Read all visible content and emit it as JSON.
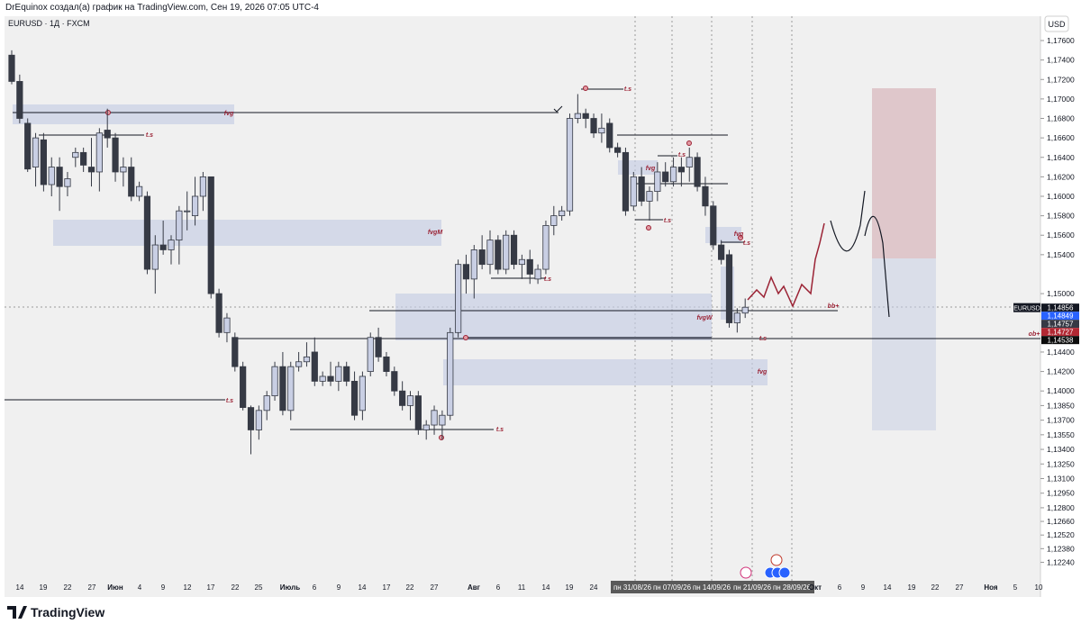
{
  "chart_data": {
    "type": "candlestick",
    "title": "DrEquinox создал(а) график на TradingView.com, Сен 19, 2026 07:05 UTC-4",
    "subtitle": "EURUSD · 1Д · FXCM",
    "currency": "USD",
    "symbol": "EURUSD",
    "brand": "TradingView",
    "up_color": "#c9cfe4",
    "down_color": "#363a45",
    "grid": false,
    "ylim": [
      1.1205,
      1.1785
    ],
    "yticks": [
      {
        "value": 1.176,
        "label": "1,17600"
      },
      {
        "value": 1.174,
        "label": "1,17400"
      },
      {
        "value": 1.172,
        "label": "1,17200"
      },
      {
        "value": 1.17,
        "label": "1,17000"
      },
      {
        "value": 1.168,
        "label": "1,16800"
      },
      {
        "value": 1.166,
        "label": "1,16600"
      },
      {
        "value": 1.164,
        "label": "1,16400"
      },
      {
        "value": 1.162,
        "label": "1,16200"
      },
      {
        "value": 1.16,
        "label": "1,16000"
      },
      {
        "value": 1.158,
        "label": "1,15800"
      },
      {
        "value": 1.156,
        "label": "1,15600"
      },
      {
        "value": 1.154,
        "label": "1,15400"
      },
      {
        "value": 1.15,
        "label": "1,15000"
      },
      {
        "value": 1.144,
        "label": "1,14400"
      },
      {
        "value": 1.142,
        "label": "1,14200"
      },
      {
        "value": 1.14,
        "label": "1,14000"
      },
      {
        "value": 1.1385,
        "label": "1,13850"
      },
      {
        "value": 1.137,
        "label": "1,13700"
      },
      {
        "value": 1.1355,
        "label": "1,13550"
      },
      {
        "value": 1.134,
        "label": "1,13400"
      },
      {
        "value": 1.1325,
        "label": "1,13250"
      },
      {
        "value": 1.131,
        "label": "1,13100"
      },
      {
        "value": 1.1295,
        "label": "1,12950"
      },
      {
        "value": 1.128,
        "label": "1,12800"
      },
      {
        "value": 1.1266,
        "label": "1,12660"
      },
      {
        "value": 1.1252,
        "label": "1,12520"
      },
      {
        "value": 1.1238,
        "label": "1,12380"
      },
      {
        "value": 1.1224,
        "label": "1,12240"
      }
    ],
    "price_tags": [
      {
        "value": 1.14856,
        "label": "1,14856"
      },
      {
        "value": 1.14849,
        "label": "1,14849"
      },
      {
        "value": 1.14757,
        "label": "1,14757"
      },
      {
        "value": 1.14727,
        "label": "1,14727"
      },
      {
        "value": 1.14538,
        "label": "1,14538"
      }
    ],
    "x_labels": [
      "14",
      "19",
      "22",
      "27",
      "Июн",
      "4",
      "9",
      "12",
      "17",
      "22",
      "25",
      "Июль",
      "6",
      "9",
      "14",
      "17",
      "22",
      "27",
      "Авг",
      "6",
      "11",
      "14",
      "19",
      "24",
      "пн 31/08/26",
      "пн 07/09/26",
      "пн 14/09/26",
      "пн 21/09/26",
      "пн 28/09/26",
      "Окт",
      "6",
      "9",
      "14",
      "19",
      "22",
      "27",
      "Ноя",
      "5",
      "10"
    ],
    "annotations": [
      "fvg",
      "t.s",
      "fvgM",
      "t.s",
      "t.s",
      "t.s",
      "t.s",
      "fvg",
      "t.s",
      "t.s",
      "fvg",
      "t.s",
      "fvgW",
      "bb+",
      "ob+",
      "t.s",
      "fvg"
    ],
    "open": [
      1.1745,
      1.1718,
      1.1675,
      1.163,
      1.1658,
      1.1612,
      1.163,
      1.161,
      1.164,
      1.1645,
      1.163,
      1.1625,
      1.1668,
      1.166,
      1.1625,
      1.163,
      1.16,
      1.16,
      1.1525,
      1.155,
      1.1545,
      1.1555,
      1.1585,
      1.158,
      1.16,
      1.162,
      1.15,
      1.146,
      1.1455,
      1.1425,
      1.1383,
      1.136,
      1.138,
      1.1395,
      1.1425,
      1.138,
      1.1425,
      1.143,
      1.144,
      1.141,
      1.1415,
      1.141,
      1.1425,
      1.141,
      1.138,
      1.142,
      1.1455,
      1.1435,
      1.142,
      1.14,
      1.1385,
      1.1395,
      1.136,
      1.1365,
      1.1365,
      1.1375,
      1.146,
      1.153,
      1.1515,
      1.1545,
      1.153,
      1.1555,
      1.1525,
      1.156,
      1.153,
      1.1535,
      1.1515,
      1.1525,
      1.157,
      1.158,
      1.1585,
      1.168,
      1.1685,
      1.168,
      1.1665,
      1.1675,
      1.165,
      1.1645,
      1.159,
      1.162,
      1.1595,
      1.1605,
      1.1625,
      1.1615,
      1.163,
      1.163,
      1.164,
      1.161,
      1.159,
      1.155,
      1.154,
      1.147,
      1.148
    ],
    "high": [
      1.175,
      1.1725,
      1.168,
      1.1665,
      1.1665,
      1.164,
      1.164,
      1.1625,
      1.165,
      1.165,
      1.166,
      1.167,
      1.169,
      1.1665,
      1.164,
      1.164,
      1.1615,
      1.1605,
      1.156,
      1.1575,
      1.156,
      1.159,
      1.1605,
      1.162,
      1.1625,
      1.162,
      1.1505,
      1.148,
      1.146,
      1.143,
      1.1385,
      1.1385,
      1.14,
      1.143,
      1.144,
      1.143,
      1.144,
      1.145,
      1.1455,
      1.142,
      1.143,
      1.143,
      1.143,
      1.142,
      1.142,
      1.146,
      1.1465,
      1.144,
      1.1425,
      1.141,
      1.14,
      1.14,
      1.137,
      1.1385,
      1.138,
      1.1465,
      1.1535,
      1.154,
      1.155,
      1.156,
      1.1565,
      1.156,
      1.1565,
      1.1565,
      1.154,
      1.1545,
      1.153,
      1.1575,
      1.159,
      1.159,
      1.1685,
      1.1705,
      1.169,
      1.1685,
      1.1685,
      1.168,
      1.1655,
      1.165,
      1.1625,
      1.163,
      1.161,
      1.1635,
      1.1635,
      1.164,
      1.164,
      1.165,
      1.1645,
      1.162,
      1.1595,
      1.1555,
      1.1545,
      1.1485,
      1.1495
    ],
    "low": [
      1.1715,
      1.1675,
      1.1625,
      1.161,
      1.1605,
      1.16,
      1.1585,
      1.16,
      1.163,
      1.1625,
      1.161,
      1.1605,
      1.165,
      1.1615,
      1.161,
      1.1595,
      1.1595,
      1.152,
      1.15,
      1.154,
      1.153,
      1.153,
      1.1565,
      1.157,
      1.1585,
      1.1495,
      1.1455,
      1.145,
      1.142,
      1.138,
      1.1335,
      1.135,
      1.137,
      1.139,
      1.1375,
      1.137,
      1.142,
      1.1425,
      1.1405,
      1.1405,
      1.1405,
      1.14,
      1.1405,
      1.137,
      1.137,
      1.1415,
      1.143,
      1.1415,
      1.1395,
      1.138,
      1.137,
      1.1355,
      1.135,
      1.1355,
      1.135,
      1.137,
      1.1455,
      1.15,
      1.1495,
      1.1525,
      1.152,
      1.152,
      1.152,
      1.1525,
      1.1515,
      1.151,
      1.151,
      1.152,
      1.156,
      1.1575,
      1.158,
      1.1675,
      1.167,
      1.166,
      1.1655,
      1.1645,
      1.164,
      1.158,
      1.1585,
      1.159,
      1.1575,
      1.1595,
      1.161,
      1.161,
      1.161,
      1.1615,
      1.1605,
      1.158,
      1.1545,
      1.153,
      1.1465,
      1.146,
      1.1475
    ],
    "close": [
      1.1718,
      1.168,
      1.1628,
      1.166,
      1.1612,
      1.163,
      1.161,
      1.1618,
      1.1645,
      1.1632,
      1.1625,
      1.1665,
      1.166,
      1.1625,
      1.163,
      1.16,
      1.161,
      1.1525,
      1.155,
      1.1545,
      1.1555,
      1.1585,
      1.1585,
      1.16,
      1.162,
      1.15,
      1.146,
      1.1475,
      1.1425,
      1.1383,
      1.136,
      1.138,
      1.1395,
      1.1425,
      1.138,
      1.1425,
      1.143,
      1.1435,
      1.141,
      1.1415,
      1.141,
      1.1425,
      1.141,
      1.1375,
      1.1415,
      1.1455,
      1.1435,
      1.142,
      1.14,
      1.1385,
      1.1395,
      1.136,
      1.1365,
      1.138,
      1.1375,
      1.146,
      1.153,
      1.1515,
      1.1545,
      1.153,
      1.1555,
      1.1525,
      1.156,
      1.153,
      1.1535,
      1.152,
      1.1525,
      1.157,
      1.158,
      1.1585,
      1.168,
      1.1685,
      1.168,
      1.1665,
      1.167,
      1.165,
      1.1645,
      1.1585,
      1.162,
      1.1595,
      1.1605,
      1.1625,
      1.1615,
      1.163,
      1.1625,
      1.164,
      1.161,
      1.159,
      1.155,
      1.1535,
      1.147,
      1.148,
      1.1486
    ]
  }
}
